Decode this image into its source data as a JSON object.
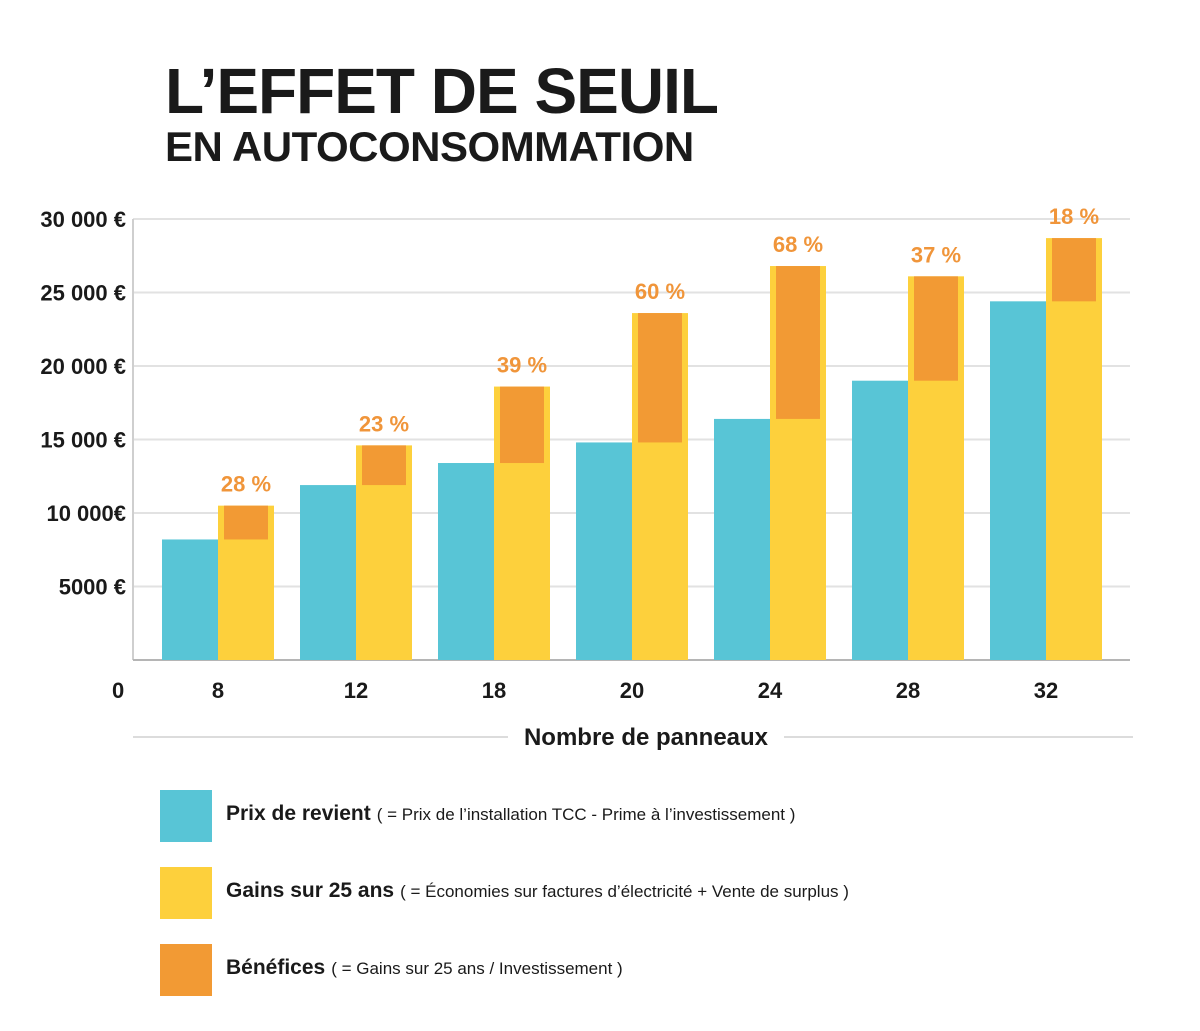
{
  "title": "L’EFFET DE SEUIL",
  "subtitle": "EN AUTOCONSOMMATION",
  "colors": {
    "cost": "#58c5d6",
    "gains": "#fdd03c",
    "profit": "#f29a34",
    "pct": "#f0953a",
    "grid": "#e2e2e2"
  },
  "chart_data": {
    "type": "bar",
    "xlabel": "Nombre de panneaux",
    "ylabel": "",
    "ylim": [
      0,
      30000
    ],
    "y_ticks": [
      0,
      5000,
      10000,
      15000,
      20000,
      25000,
      30000
    ],
    "y_tick_labels": [
      "0",
      "5000 €",
      "10 000€",
      "15 000 €",
      "20 000 €",
      "25 000 €",
      "30 000 €"
    ],
    "categories": [
      "8",
      "12",
      "18",
      "20",
      "24",
      "28",
      "32"
    ],
    "series": [
      {
        "name": "Prix de revient",
        "values": [
          8200,
          11900,
          13400,
          14800,
          16400,
          19000,
          24400
        ]
      },
      {
        "name": "Gains sur 25 ans",
        "values": [
          10500,
          14600,
          18600,
          23600,
          26800,
          26100,
          28700
        ]
      },
      {
        "name": "Bénéfices",
        "values": [
          2300,
          2700,
          5200,
          8800,
          10400,
          7100,
          4300
        ]
      }
    ],
    "percent_labels": [
      "28 %",
      "23 %",
      "39 %",
      "60 %",
      "68 %",
      "37 %",
      "18 %"
    ]
  },
  "legend": [
    {
      "label": "Prix de revient",
      "desc": "( = Prix  de l’installation TCC - Prime à l’investissement )",
      "color_key": "cost"
    },
    {
      "label": "Gains sur 25 ans",
      "desc": "( = Économies sur factures d’électricité + Vente de surplus )",
      "color_key": "gains"
    },
    {
      "label": "Bénéfices",
      "desc": "( = Gains sur 25 ans / Investissement )",
      "color_key": "profit"
    }
  ]
}
